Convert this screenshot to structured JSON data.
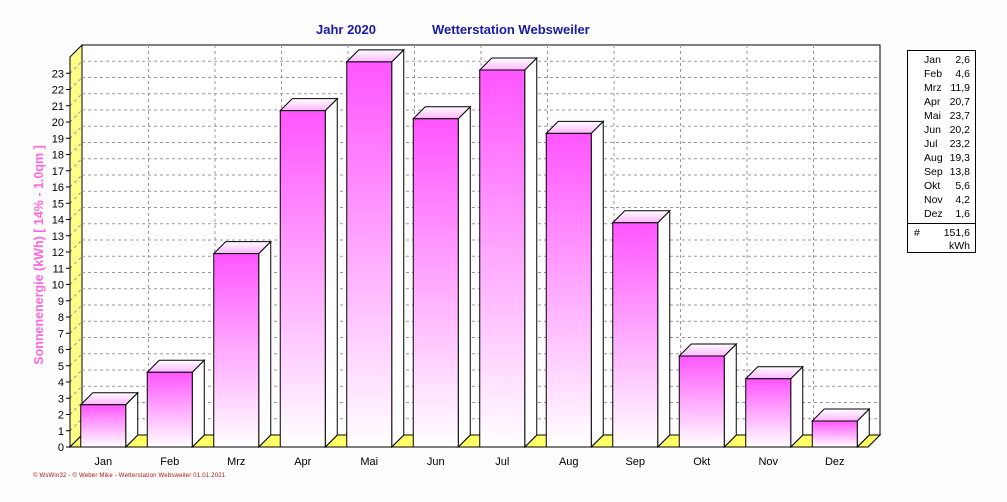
{
  "header": {
    "year_label": "Jahr  2020",
    "station_label": "Wetterstation Websweiler"
  },
  "chart_data": {
    "type": "bar",
    "categories": [
      "Jan",
      "Feb",
      "Mrz",
      "Apr",
      "Mai",
      "Jun",
      "Jul",
      "Aug",
      "Sep",
      "Okt",
      "Nov",
      "Dez"
    ],
    "values": [
      2.6,
      4.6,
      11.9,
      20.7,
      23.7,
      20.2,
      23.2,
      19.3,
      13.8,
      5.6,
      4.2,
      1.6
    ],
    "ylabel": "Sonnenenergie  (kWh)     [ 14% - 1.0qm ]",
    "ylim": [
      0,
      24
    ],
    "yticks": [
      0,
      1,
      2,
      3,
      4,
      5,
      6,
      7,
      8,
      9,
      10,
      11,
      12,
      13,
      14,
      15,
      16,
      17,
      18,
      19,
      20,
      21,
      22,
      23
    ],
    "grid": true,
    "colors": {
      "bar_top": "#ff55ff",
      "bar_bottom": "#ffffff",
      "floor": "#ffff66",
      "left_wall": "#ffff88",
      "grid": "#999999",
      "ylabel": "#ff66dd"
    }
  },
  "legend": {
    "rows": [
      {
        "month": "Jan",
        "value": "2,6"
      },
      {
        "month": "Feb",
        "value": "4,6"
      },
      {
        "month": "Mrz",
        "value": "11,9"
      },
      {
        "month": "Apr",
        "value": "20,7"
      },
      {
        "month": "Mai",
        "value": "23,7"
      },
      {
        "month": "Jun",
        "value": "20,2"
      },
      {
        "month": "Jul",
        "value": "23,2"
      },
      {
        "month": "Aug",
        "value": "19,3"
      },
      {
        "month": "Sep",
        "value": "13,8"
      },
      {
        "month": "Okt",
        "value": "5,6"
      },
      {
        "month": "Nov",
        "value": "4,2"
      },
      {
        "month": "Dez",
        "value": "1,6"
      }
    ],
    "total_symbol": "#",
    "total_value": "151,6",
    "total_unit": "kWh"
  },
  "footer": "© WsWin32  -  © Weber Mike  -  Wetterstation Websweiler   01.01.2021"
}
